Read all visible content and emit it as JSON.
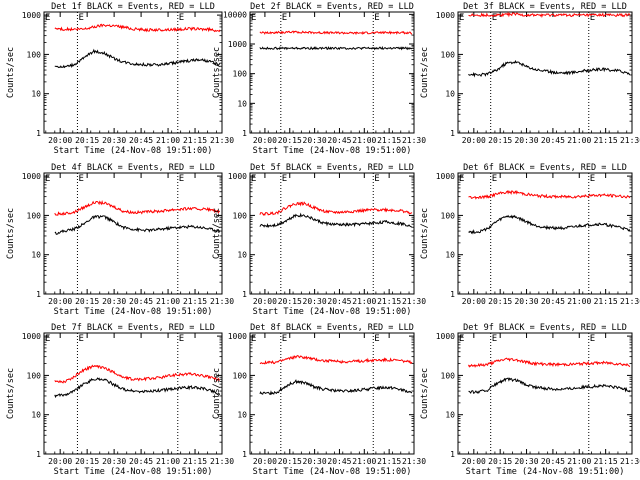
{
  "chart_data": [
    {
      "type": "line",
      "title": "Det 1f BLACK = Events, RED = LLD",
      "xlabel": "Start Time (24-Nov-08 19:51:00)",
      "ylabel": "Counts/sec",
      "x_ticks": [
        "20:00",
        "20:15",
        "20:30",
        "20:45",
        "21:00",
        "21:15",
        "21:30"
      ],
      "y_ticks": [
        "1",
        "10",
        "100",
        "1000"
      ],
      "xlim": [
        19.85,
        21.5
      ],
      "ylim": [
        1,
        1200
      ],
      "yscale": "log",
      "markers": [
        "E",
        "E"
      ],
      "series": [
        {
          "color": "#000000",
          "values": [
            50,
            48,
            55,
            80,
            120,
            110,
            80,
            65,
            58,
            55,
            54,
            55,
            60,
            65,
            70,
            72,
            65,
            55
          ]
        },
        {
          "color": "#ff0000",
          "values": [
            450,
            440,
            430,
            440,
            500,
            560,
            540,
            500,
            450,
            430,
            420,
            420,
            430,
            440,
            450,
            440,
            430,
            400
          ]
        }
      ]
    },
    {
      "type": "line",
      "title": "Det 2f BLACK = Events, RED = LLD",
      "xlabel": "Start Time (24-Nov-08 19:51:00)",
      "ylabel": "Counts/sec",
      "x_ticks": [
        "20:00",
        "20:15",
        "20:30",
        "20:45",
        "21:00",
        "21:15",
        "21:30"
      ],
      "y_ticks": [
        "1",
        "10",
        "100",
        "1000",
        "10000"
      ],
      "xlim": [
        19.85,
        21.5
      ],
      "ylim": [
        1,
        12000
      ],
      "yscale": "log",
      "markers": [
        "E",
        "E"
      ],
      "series": [
        {
          "color": "#000000",
          "values": [
            720,
            720,
            720,
            720,
            720,
            720,
            720,
            720,
            720,
            720,
            720,
            720,
            720,
            720,
            720,
            720,
            720,
            720
          ]
        },
        {
          "color": "#ff0000",
          "values": [
            2400,
            2400,
            2450,
            2500,
            2550,
            2500,
            2450,
            2400,
            2400,
            2400,
            2350,
            2350,
            2400,
            2400,
            2450,
            2400,
            2400,
            2350
          ]
        }
      ]
    },
    {
      "type": "line",
      "title": "Det 3f BLACK = Events, RED = LLD",
      "xlabel": "",
      "ylabel": "Counts/sec",
      "x_ticks": [
        "20:00",
        "20:15",
        "20:30",
        "20:45",
        "21:00",
        "21:15",
        "21:30"
      ],
      "y_ticks": [
        "1",
        "10",
        "100",
        "1000"
      ],
      "xlim": [
        19.85,
        21.5
      ],
      "ylim": [
        1,
        1200
      ],
      "yscale": "log",
      "markers": [
        "E",
        "E"
      ],
      "series": [
        {
          "color": "#000000",
          "values": [
            32,
            30,
            32,
            40,
            60,
            65,
            50,
            42,
            38,
            35,
            34,
            35,
            38,
            40,
            42,
            40,
            38,
            32
          ]
        },
        {
          "color": "#ff0000",
          "values": [
            1000,
            1000,
            1000,
            1000,
            1050,
            1050,
            1000,
            1000,
            1000,
            1000,
            1000,
            1000,
            1000,
            1000,
            1000,
            1000,
            1000,
            1000
          ]
        }
      ]
    },
    {
      "type": "line",
      "title": "Det 4f BLACK = Events, RED = LLD",
      "xlabel": "Start Time (24-Nov-08 19:51:00)",
      "ylabel": "Counts/sec",
      "x_ticks": [
        "20:00",
        "20:15",
        "20:30",
        "20:45",
        "21:00",
        "21:15",
        "21:30"
      ],
      "y_ticks": [
        "1",
        "10",
        "100",
        "1000"
      ],
      "xlim": [
        19.85,
        21.5
      ],
      "ylim": [
        1,
        1200
      ],
      "yscale": "log",
      "markers": [
        "E",
        "E"
      ],
      "series": [
        {
          "color": "#000000",
          "values": [
            35,
            40,
            45,
            60,
            90,
            95,
            70,
            50,
            45,
            42,
            42,
            45,
            48,
            50,
            52,
            50,
            45,
            40
          ]
        },
        {
          "color": "#ff0000",
          "values": [
            110,
            110,
            120,
            160,
            210,
            210,
            170,
            130,
            120,
            120,
            125,
            130,
            140,
            145,
            150,
            145,
            140,
            120
          ]
        }
      ]
    },
    {
      "type": "line",
      "title": "Det 5f BLACK = Events, RED = LLD",
      "xlabel": "Start Time (24-Nov-08 19:51:00)",
      "ylabel": "Counts/sec",
      "x_ticks": [
        "20:00",
        "20:15",
        "20:30",
        "20:45",
        "21:00",
        "21:15",
        "21:30"
      ],
      "y_ticks": [
        "1",
        "10",
        "100",
        "1000"
      ],
      "xlim": [
        19.85,
        21.5
      ],
      "ylim": [
        1,
        1200
      ],
      "yscale": "log",
      "markers": [
        "E",
        "E"
      ],
      "series": [
        {
          "color": "#000000",
          "values": [
            55,
            55,
            58,
            75,
            100,
            100,
            80,
            65,
            60,
            58,
            58,
            60,
            62,
            65,
            68,
            65,
            60,
            55
          ]
        },
        {
          "color": "#ff0000",
          "values": [
            110,
            110,
            120,
            160,
            200,
            200,
            160,
            130,
            120,
            120,
            125,
            130,
            135,
            140,
            140,
            135,
            130,
            110
          ]
        }
      ]
    },
    {
      "type": "line",
      "title": "Det 6f BLACK = Events, RED = LLD",
      "xlabel": "",
      "ylabel": "Counts/sec",
      "x_ticks": [
        "20:00",
        "20:15",
        "20:30",
        "20:45",
        "21:00",
        "21:15",
        "21:30"
      ],
      "y_ticks": [
        "1",
        "10",
        "100",
        "1000"
      ],
      "xlim": [
        19.85,
        21.5
      ],
      "ylim": [
        1,
        1200
      ],
      "yscale": "log",
      "markers": [
        "E",
        "E"
      ],
      "series": [
        {
          "color": "#000000",
          "values": [
            38,
            38,
            45,
            70,
            95,
            90,
            70,
            55,
            50,
            48,
            48,
            50,
            55,
            58,
            60,
            55,
            50,
            40
          ]
        },
        {
          "color": "#ff0000",
          "values": [
            290,
            290,
            300,
            350,
            390,
            390,
            350,
            320,
            310,
            300,
            300,
            300,
            310,
            320,
            330,
            320,
            310,
            290
          ]
        }
      ]
    },
    {
      "type": "line",
      "title": "Det 7f BLACK = Events, RED = LLD",
      "xlabel": "Start Time (24-Nov-08 19:51:00)",
      "ylabel": "Counts/sec",
      "x_ticks": [
        "20:00",
        "20:15",
        "20:30",
        "20:45",
        "21:00",
        "21:15",
        "21:30"
      ],
      "y_ticks": [
        "1",
        "10",
        "100",
        "1000"
      ],
      "xlim": [
        19.85,
        21.5
      ],
      "ylim": [
        1,
        1200
      ],
      "yscale": "log",
      "markers": [
        "E",
        "E"
      ],
      "series": [
        {
          "color": "#000000",
          "values": [
            30,
            32,
            40,
            60,
            80,
            80,
            60,
            45,
            40,
            38,
            40,
            42,
            45,
            48,
            50,
            48,
            42,
            32
          ]
        },
        {
          "color": "#ff0000",
          "values": [
            70,
            70,
            90,
            140,
            170,
            160,
            120,
            90,
            80,
            80,
            85,
            90,
            100,
            105,
            110,
            100,
            90,
            75
          ]
        }
      ]
    },
    {
      "type": "line",
      "title": "Det 8f BLACK = Events, RED = LLD",
      "xlabel": "Start Time (24-Nov-08 19:51:00)",
      "ylabel": "Counts/sec",
      "x_ticks": [
        "20:00",
        "20:15",
        "20:30",
        "20:45",
        "21:00",
        "21:15",
        "21:30"
      ],
      "y_ticks": [
        "1",
        "10",
        "100",
        "1000"
      ],
      "xlim": [
        19.85,
        21.5
      ],
      "ylim": [
        1,
        1200
      ],
      "yscale": "log",
      "markers": [
        "E",
        "E"
      ],
      "series": [
        {
          "color": "#000000",
          "values": [
            35,
            35,
            38,
            55,
            70,
            65,
            52,
            45,
            42,
            40,
            40,
            42,
            45,
            48,
            50,
            48,
            42,
            35
          ]
        },
        {
          "color": "#ff0000",
          "values": [
            210,
            210,
            220,
            260,
            300,
            290,
            260,
            240,
            230,
            225,
            225,
            230,
            240,
            245,
            250,
            245,
            235,
            210
          ]
        }
      ]
    },
    {
      "type": "line",
      "title": "Det 9f BLACK = Events, RED = LLD",
      "xlabel": "Start Time (24-Nov-08 19:51:00)",
      "ylabel": "Counts/sec",
      "x_ticks": [
        "20:00",
        "20:15",
        "20:30",
        "20:45",
        "21:00",
        "21:15",
        "21:30"
      ],
      "y_ticks": [
        "1",
        "10",
        "100",
        "1000"
      ],
      "xlim": [
        19.85,
        21.5
      ],
      "ylim": [
        1,
        1200
      ],
      "yscale": "log",
      "markers": [
        "E",
        "E"
      ],
      "series": [
        {
          "color": "#000000",
          "values": [
            38,
            38,
            42,
            62,
            80,
            75,
            58,
            50,
            47,
            45,
            45,
            47,
            50,
            52,
            55,
            52,
            48,
            40
          ]
        },
        {
          "color": "#ff0000",
          "values": [
            180,
            180,
            190,
            230,
            260,
            250,
            220,
            200,
            195,
            190,
            190,
            192,
            200,
            205,
            210,
            205,
            195,
            180
          ]
        }
      ]
    }
  ]
}
